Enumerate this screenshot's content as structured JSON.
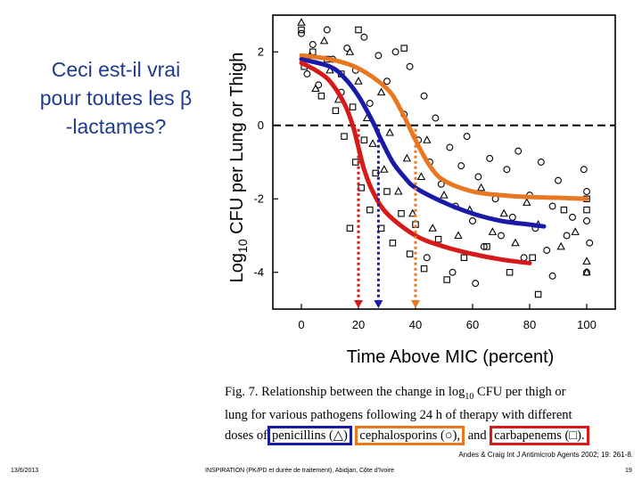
{
  "slide": {
    "title_lines": [
      "Ceci est-il vrai",
      "pour toutes les β",
      "-lactames?"
    ],
    "caption_line1": "Fig. 7. Relationship between the change in log",
    "caption_sub": "10",
    "caption_line1b": " CFU per thigh or",
    "caption_line2": "lung for various pathogens following 24 h of therapy with different",
    "caption_prefix": "doses of",
    "caption_pen": "penicillins (△)",
    "caption_ceph": "cephalosporins (○),",
    "caption_and": "and",
    "caption_carb": "carbapenems (□).",
    "citation": "Andes & Craig Int J Antimicrob Agents 2002; 19: 261-8.",
    "footer_date": "13/6/2013",
    "footer_center": "INSPIRATION (PK/PD et durée de traitement), Abidjan, Côte d'Ivoire",
    "footer_page": "19"
  },
  "chart_data": {
    "type": "scatter",
    "xlabel": "Time Above MIC (percent)",
    "ylabel_prefix": "Log",
    "ylabel_sub": "10",
    "ylabel_suffix": " CFU per Lung or Thigh",
    "xlim": [
      -10,
      110
    ],
    "ylim": [
      -5,
      3
    ],
    "xticks": [
      0,
      20,
      40,
      60,
      80,
      100
    ],
    "yticks": [
      2,
      0,
      -2,
      -4
    ],
    "stasis_line_y": 0,
    "colors": {
      "penicillins": "#1a1aa8",
      "cephalosporins": "#e87722",
      "carbapenems": "#d61a1a"
    },
    "series": [
      {
        "name": "cephalosporins (○)",
        "marker": "circle",
        "curve_color": "#e87722",
        "threshold_x": 40,
        "fit": {
          "x": [
            0,
            10,
            20,
            30,
            35,
            40,
            45,
            50,
            60,
            70,
            80,
            90,
            100
          ],
          "y": [
            1.9,
            1.8,
            1.55,
            1.0,
            0.4,
            -0.4,
            -1.1,
            -1.5,
            -1.8,
            -1.9,
            -1.95,
            -1.97,
            -2.0
          ]
        }
      },
      {
        "name": "penicillins (△)",
        "marker": "triangle",
        "curve_color": "#1a1aa8",
        "threshold_x": 27,
        "fit": {
          "x": [
            0,
            10,
            15,
            20,
            25,
            28,
            32,
            36,
            40,
            50,
            60,
            70,
            80,
            85
          ],
          "y": [
            1.8,
            1.6,
            1.3,
            0.8,
            0.1,
            -0.4,
            -1.0,
            -1.4,
            -1.7,
            -2.1,
            -2.4,
            -2.6,
            -2.7,
            -2.75
          ]
        }
      },
      {
        "name": "carbapenems (□)",
        "marker": "square",
        "curve_color": "#d61a1a",
        "threshold_x": 20,
        "fit": {
          "x": [
            0,
            5,
            10,
            15,
            18,
            20,
            22,
            25,
            30,
            40,
            50,
            60,
            70,
            80
          ],
          "y": [
            1.7,
            1.5,
            1.2,
            0.6,
            0.0,
            -0.6,
            -1.2,
            -1.8,
            -2.4,
            -3.0,
            -3.3,
            -3.5,
            -3.65,
            -3.75
          ]
        }
      }
    ],
    "points": [
      {
        "m": "circle",
        "x": 0,
        "y": 2.5
      },
      {
        "m": "circle",
        "x": 2,
        "y": 1.4
      },
      {
        "m": "circle",
        "x": 4,
        "y": 2.2
      },
      {
        "m": "circle",
        "x": 6,
        "y": 1.1
      },
      {
        "m": "circle",
        "x": 9,
        "y": 2.6
      },
      {
        "m": "circle",
        "x": 11,
        "y": 1.8
      },
      {
        "m": "circle",
        "x": 14,
        "y": 0.9
      },
      {
        "m": "circle",
        "x": 16,
        "y": 2.1
      },
      {
        "m": "circle",
        "x": 19,
        "y": 1.5
      },
      {
        "m": "circle",
        "x": 22,
        "y": 2.4
      },
      {
        "m": "circle",
        "x": 24,
        "y": 0.6
      },
      {
        "m": "circle",
        "x": 27,
        "y": 1.9
      },
      {
        "m": "circle",
        "x": 30,
        "y": 1.2
      },
      {
        "m": "circle",
        "x": 33,
        "y": 2.0
      },
      {
        "m": "circle",
        "x": 36,
        "y": 0.3
      },
      {
        "m": "circle",
        "x": 38,
        "y": 1.6
      },
      {
        "m": "circle",
        "x": 41,
        "y": -0.4
      },
      {
        "m": "circle",
        "x": 43,
        "y": 0.8
      },
      {
        "m": "circle",
        "x": 45,
        "y": -1.0
      },
      {
        "m": "circle",
        "x": 47,
        "y": 0.2
      },
      {
        "m": "circle",
        "x": 49,
        "y": -1.6
      },
      {
        "m": "circle",
        "x": 52,
        "y": -0.6
      },
      {
        "m": "circle",
        "x": 54,
        "y": -2.2
      },
      {
        "m": "circle",
        "x": 56,
        "y": -1.1
      },
      {
        "m": "circle",
        "x": 58,
        "y": -0.3
      },
      {
        "m": "circle",
        "x": 60,
        "y": -2.6
      },
      {
        "m": "circle",
        "x": 62,
        "y": -1.4
      },
      {
        "m": "circle",
        "x": 64,
        "y": -3.3
      },
      {
        "m": "circle",
        "x": 66,
        "y": -0.9
      },
      {
        "m": "circle",
        "x": 68,
        "y": -2.0
      },
      {
        "m": "circle",
        "x": 70,
        "y": -3.0
      },
      {
        "m": "circle",
        "x": 72,
        "y": -1.2
      },
      {
        "m": "circle",
        "x": 74,
        "y": -2.5
      },
      {
        "m": "circle",
        "x": 76,
        "y": -0.7
      },
      {
        "m": "circle",
        "x": 78,
        "y": -3.6
      },
      {
        "m": "circle",
        "x": 80,
        "y": -1.9
      },
      {
        "m": "circle",
        "x": 82,
        "y": -2.8
      },
      {
        "m": "circle",
        "x": 84,
        "y": -1.0
      },
      {
        "m": "circle",
        "x": 86,
        "y": -3.4
      },
      {
        "m": "circle",
        "x": 88,
        "y": -2.2
      },
      {
        "m": "circle",
        "x": 90,
        "y": -1.5
      },
      {
        "m": "circle",
        "x": 93,
        "y": -3.0
      },
      {
        "m": "circle",
        "x": 95,
        "y": -2.5
      },
      {
        "m": "circle",
        "x": 99,
        "y": -1.2
      },
      {
        "m": "circle",
        "x": 100,
        "y": -1.8
      },
      {
        "m": "circle",
        "x": 100,
        "y": -2.6
      },
      {
        "m": "circle",
        "x": 101,
        "y": -3.2
      },
      {
        "m": "circle",
        "x": 100,
        "y": -4.0
      },
      {
        "m": "circle",
        "x": 53,
        "y": -4.0
      },
      {
        "m": "circle",
        "x": 61,
        "y": -4.3
      },
      {
        "m": "circle",
        "x": 88,
        "y": -4.1
      },
      {
        "m": "circle",
        "x": 44,
        "y": -3.6
      },
      {
        "m": "triangle",
        "x": 0,
        "y": 2.8
      },
      {
        "m": "triangle",
        "x": 3,
        "y": 1.9
      },
      {
        "m": "triangle",
        "x": 5,
        "y": 1.0
      },
      {
        "m": "triangle",
        "x": 8,
        "y": 2.3
      },
      {
        "m": "triangle",
        "x": 10,
        "y": 1.5
      },
      {
        "m": "triangle",
        "x": 13,
        "y": 0.7
      },
      {
        "m": "triangle",
        "x": 17,
        "y": 2.0
      },
      {
        "m": "triangle",
        "x": 20,
        "y": 1.2
      },
      {
        "m": "triangle",
        "x": 23,
        "y": 0.2
      },
      {
        "m": "triangle",
        "x": 25,
        "y": -0.5
      },
      {
        "m": "triangle",
        "x": 28,
        "y": 0.9
      },
      {
        "m": "triangle",
        "x": 29,
        "y": -1.2
      },
      {
        "m": "triangle",
        "x": 31,
        "y": -0.2
      },
      {
        "m": "triangle",
        "x": 34,
        "y": -1.8
      },
      {
        "m": "triangle",
        "x": 37,
        "y": -0.9
      },
      {
        "m": "triangle",
        "x": 39,
        "y": -2.4
      },
      {
        "m": "triangle",
        "x": 42,
        "y": -1.4
      },
      {
        "m": "triangle",
        "x": 46,
        "y": -2.8
      },
      {
        "m": "triangle",
        "x": 50,
        "y": -1.9
      },
      {
        "m": "triangle",
        "x": 55,
        "y": -3.0
      },
      {
        "m": "triangle",
        "x": 59,
        "y": -2.3
      },
      {
        "m": "triangle",
        "x": 63,
        "y": -1.7
      },
      {
        "m": "triangle",
        "x": 67,
        "y": -2.9
      },
      {
        "m": "triangle",
        "x": 71,
        "y": -2.4
      },
      {
        "m": "triangle",
        "x": 75,
        "y": -3.2
      },
      {
        "m": "triangle",
        "x": 79,
        "y": -2.1
      },
      {
        "m": "triangle",
        "x": 83,
        "y": -2.7
      },
      {
        "m": "triangle",
        "x": 91,
        "y": -3.3
      },
      {
        "m": "triangle",
        "x": 96,
        "y": -2.9
      },
      {
        "m": "triangle",
        "x": 100,
        "y": -4.0
      },
      {
        "m": "triangle",
        "x": 100,
        "y": -3.7
      },
      {
        "m": "triangle",
        "x": 44,
        "y": -0.4
      },
      {
        "m": "square",
        "x": 0,
        "y": 2.6
      },
      {
        "m": "square",
        "x": 1,
        "y": 1.6
      },
      {
        "m": "square",
        "x": 4,
        "y": 2.0
      },
      {
        "m": "square",
        "x": 7,
        "y": 0.8
      },
      {
        "m": "square",
        "x": 9,
        "y": 1.8
      },
      {
        "m": "square",
        "x": 12,
        "y": 0.4
      },
      {
        "m": "square",
        "x": 14,
        "y": 1.4
      },
      {
        "m": "square",
        "x": 15,
        "y": -0.3
      },
      {
        "m": "square",
        "x": 18,
        "y": 0.5
      },
      {
        "m": "square",
        "x": 19,
        "y": -1.0
      },
      {
        "m": "square",
        "x": 21,
        "y": -1.7
      },
      {
        "m": "square",
        "x": 22,
        "y": -0.4
      },
      {
        "m": "square",
        "x": 24,
        "y": -2.3
      },
      {
        "m": "square",
        "x": 26,
        "y": -1.3
      },
      {
        "m": "square",
        "x": 28,
        "y": -2.8
      },
      {
        "m": "square",
        "x": 30,
        "y": -1.8
      },
      {
        "m": "square",
        "x": 32,
        "y": -3.2
      },
      {
        "m": "square",
        "x": 35,
        "y": -2.4
      },
      {
        "m": "square",
        "x": 38,
        "y": -3.5
      },
      {
        "m": "square",
        "x": 40,
        "y": -2.7
      },
      {
        "m": "square",
        "x": 43,
        "y": -3.9
      },
      {
        "m": "square",
        "x": 48,
        "y": -3.1
      },
      {
        "m": "square",
        "x": 51,
        "y": -4.2
      },
      {
        "m": "square",
        "x": 57,
        "y": -3.6
      },
      {
        "m": "square",
        "x": 65,
        "y": -3.3
      },
      {
        "m": "square",
        "x": 73,
        "y": -4.0
      },
      {
        "m": "square",
        "x": 81,
        "y": -3.6
      },
      {
        "m": "square",
        "x": 83,
        "y": -4.6
      },
      {
        "m": "square",
        "x": 92,
        "y": -2.3
      },
      {
        "m": "square",
        "x": 100,
        "y": -2.0
      },
      {
        "m": "square",
        "x": 100,
        "y": -2.3
      },
      {
        "m": "square",
        "x": 17,
        "y": -2.8
      },
      {
        "m": "square",
        "x": 20,
        "y": 2.6
      },
      {
        "m": "square",
        "x": 36,
        "y": 2.1
      }
    ]
  }
}
